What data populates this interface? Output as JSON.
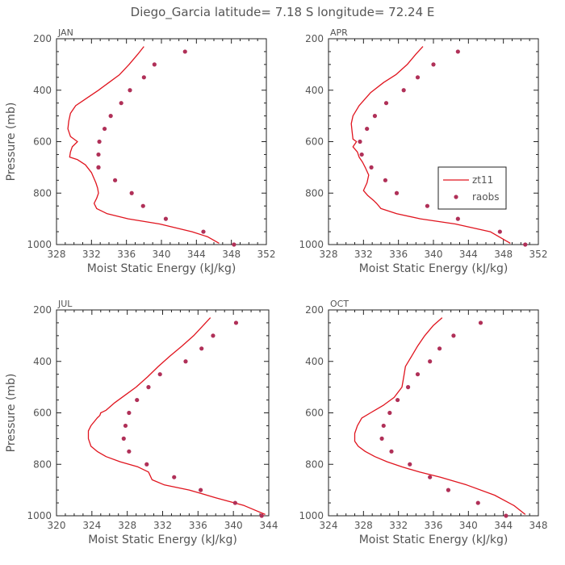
{
  "figure": {
    "title": "Diego_Garcia   latitude= 7.18 S longitude= 72.24 E"
  },
  "legend": {
    "line_label": "zt11",
    "dot_label": "raobs",
    "shown_in_panel": 1
  },
  "colors": {
    "model_line": "#e0141e",
    "obs_dot": "#b03058",
    "axes": "#222222"
  },
  "chart_data": [
    {
      "type": "line",
      "panel_label": "JAN",
      "xlabel": "Moist Static Energy (kJ/kg)",
      "ylabel": "Pressure (mb)",
      "xlim": [
        328,
        352
      ],
      "ylim": [
        1000,
        200
      ],
      "xticks": [
        328,
        332,
        336,
        340,
        344,
        348,
        352
      ],
      "yticks": [
        200,
        400,
        600,
        800,
        1000
      ],
      "series": [
        {
          "name": "zt11",
          "kind": "line",
          "x": [
            338.0,
            337.3,
            336.3,
            335.2,
            334.0,
            332.8,
            331.5,
            330.2,
            329.6,
            329.4,
            329.3,
            329.6,
            330.4,
            329.8,
            329.6,
            329.5,
            330.4,
            331.3,
            332.0,
            332.5,
            332.7,
            332.8,
            332.6,
            332.3,
            332.6,
            333.8,
            336.2,
            339.8,
            343.5,
            345.3,
            346.6
          ],
          "y": [
            230,
            260,
            300,
            340,
            370,
            400,
            430,
            460,
            490,
            520,
            550,
            580,
            600,
            620,
            640,
            660,
            670,
            690,
            720,
            760,
            780,
            800,
            820,
            840,
            860,
            880,
            900,
            920,
            950,
            970,
            995
          ]
        },
        {
          "name": "raobs",
          "kind": "scatter",
          "x": [
            342.7,
            339.2,
            338.0,
            336.4,
            335.4,
            334.2,
            333.5,
            332.9,
            332.8,
            332.8,
            332.8,
            334.7,
            336.6,
            337.9,
            340.5,
            344.8,
            348.3
          ],
          "y": [
            250,
            300,
            350,
            400,
            450,
            500,
            550,
            600,
            650,
            700,
            700,
            750,
            800,
            850,
            900,
            950,
            1000
          ]
        }
      ]
    },
    {
      "type": "line",
      "panel_label": "APR",
      "xlabel": "Moist Static Energy (kJ/kg)",
      "ylabel": "",
      "xlim": [
        328,
        352
      ],
      "ylim": [
        1000,
        200
      ],
      "xticks": [
        328,
        332,
        336,
        340,
        344,
        348,
        352
      ],
      "yticks": [
        200,
        400,
        600,
        800,
        1000
      ],
      "series": [
        {
          "name": "zt11",
          "kind": "line",
          "x": [
            338.8,
            338.0,
            337.0,
            335.7,
            334.3,
            332.8,
            331.5,
            330.8,
            330.6,
            330.7,
            330.8,
            331.2,
            330.8,
            331.3,
            331.5,
            331.9,
            332.2,
            332.6,
            332.4,
            332.0,
            332.5,
            333.2,
            333.5,
            334.0,
            335.8,
            338.5,
            342.5,
            346.5,
            348.8
          ],
          "y": [
            230,
            260,
            300,
            340,
            370,
            410,
            460,
            500,
            530,
            560,
            590,
            600,
            620,
            640,
            660,
            680,
            700,
            730,
            760,
            790,
            810,
            830,
            840,
            860,
            880,
            900,
            920,
            950,
            995
          ]
        },
        {
          "name": "raobs",
          "kind": "scatter",
          "x": [
            342.8,
            340.0,
            338.2,
            336.6,
            334.6,
            333.3,
            332.4,
            331.6,
            331.8,
            332.9,
            334.5,
            335.8,
            339.3,
            342.8,
            347.6,
            350.5
          ],
          "y": [
            250,
            300,
            350,
            400,
            450,
            500,
            550,
            600,
            650,
            700,
            750,
            800,
            850,
            900,
            950,
            1000
          ]
        }
      ]
    },
    {
      "type": "line",
      "panel_label": "JUL",
      "xlabel": "Moist Static Energy (kJ/kg)",
      "ylabel": "Pressure (mb)",
      "xlim": [
        320,
        344
      ],
      "ylim": [
        1000,
        200
      ],
      "xticks": [
        320,
        324,
        328,
        332,
        336,
        340,
        344
      ],
      "yticks": [
        200,
        400,
        600,
        800,
        1000
      ],
      "series": [
        {
          "name": "zt11",
          "kind": "line",
          "x": [
            337.4,
            336.6,
            335.5,
            334.2,
            332.8,
            331.5,
            330.3,
            329.0,
            327.8,
            326.6,
            325.6,
            325.0,
            324.9,
            324.6,
            323.9,
            323.6,
            323.6,
            323.9,
            324.6,
            325.6,
            327.2,
            329.2,
            330.4,
            330.8,
            332.2,
            335.0,
            338.0,
            341.2,
            343.6
          ],
          "y": [
            230,
            260,
            300,
            340,
            380,
            420,
            460,
            500,
            530,
            560,
            590,
            600,
            610,
            620,
            650,
            670,
            700,
            730,
            750,
            770,
            790,
            810,
            830,
            860,
            880,
            900,
            930,
            960,
            995
          ]
        },
        {
          "name": "raobs",
          "kind": "scatter",
          "x": [
            340.3,
            337.7,
            336.4,
            334.6,
            331.7,
            330.4,
            329.1,
            328.2,
            327.8,
            327.6,
            328.2,
            330.2,
            333.3,
            336.3,
            340.2,
            343.2
          ],
          "y": [
            250,
            300,
            350,
            400,
            450,
            500,
            550,
            600,
            650,
            700,
            750,
            800,
            850,
            900,
            950,
            1000
          ]
        }
      ]
    },
    {
      "type": "line",
      "panel_label": "OCT",
      "xlabel": "Moist Static Energy (kJ/kg)",
      "ylabel": "",
      "xlim": [
        324,
        348
      ],
      "ylim": [
        1000,
        200
      ],
      "xticks": [
        324,
        328,
        332,
        336,
        340,
        344,
        348
      ],
      "yticks": [
        200,
        400,
        600,
        800,
        1000
      ],
      "series": [
        {
          "name": "zt11",
          "kind": "line",
          "x": [
            337.0,
            336.0,
            335.0,
            334.2,
            333.5,
            332.8,
            332.6,
            332.4,
            331.5,
            330.3,
            328.8,
            327.8,
            327.3,
            327.0,
            327.0,
            327.4,
            328.2,
            329.3,
            330.7,
            332.4,
            334.4,
            336.8,
            339.8,
            343.0,
            345.2,
            346.5
          ],
          "y": [
            230,
            260,
            300,
            340,
            380,
            420,
            460,
            500,
            540,
            570,
            600,
            620,
            650,
            680,
            710,
            730,
            750,
            770,
            790,
            810,
            830,
            850,
            880,
            920,
            960,
            995
          ]
        },
        {
          "name": "raobs",
          "kind": "scatter",
          "x": [
            341.4,
            338.3,
            336.7,
            335.6,
            334.2,
            333.1,
            331.9,
            331.0,
            330.3,
            330.1,
            331.2,
            333.3,
            335.6,
            337.7,
            341.1,
            344.3
          ],
          "y": [
            250,
            300,
            350,
            400,
            450,
            500,
            550,
            600,
            650,
            700,
            750,
            800,
            850,
            900,
            950,
            1000
          ]
        }
      ]
    }
  ]
}
